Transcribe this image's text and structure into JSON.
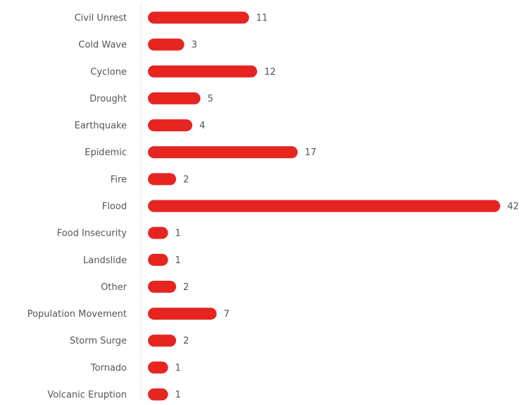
{
  "chart_data": {
    "type": "bar",
    "orientation": "horizontal",
    "color": "#e62420",
    "categories": [
      "Civil Unrest",
      "Cold Wave",
      "Cyclone",
      "Drought",
      "Earthquake",
      "Epidemic",
      "Fire",
      "Flood",
      "Food Insecurity",
      "Landslide",
      "Other",
      "Population Movement",
      "Storm Surge",
      "Tornado",
      "Volcanic Eruption"
    ],
    "values": [
      11,
      3,
      12,
      5,
      4,
      17,
      2,
      42,
      1,
      1,
      2,
      7,
      2,
      1,
      1
    ]
  }
}
